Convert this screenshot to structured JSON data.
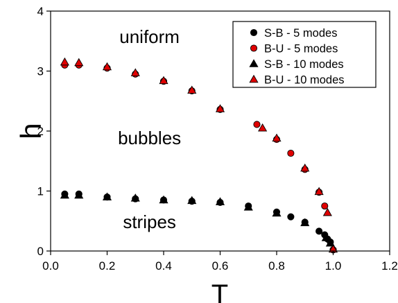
{
  "chart_data": {
    "type": "scatter",
    "xlabel": "T",
    "ylabel": "h",
    "xlim": [
      0.0,
      1.2
    ],
    "ylim": [
      0,
      4
    ],
    "xticks": [
      "0.0",
      "0.2",
      "0.4",
      "0.6",
      "0.8",
      "1.0",
      "1.2"
    ],
    "yticks": [
      "0",
      "1",
      "2",
      "3",
      "4"
    ],
    "grid": false,
    "legend_position": "top-right",
    "annotations": [
      {
        "text": "uniform",
        "x": 0.35,
        "y": 3.47
      },
      {
        "text": "bubbles",
        "x": 0.35,
        "y": 1.78
      },
      {
        "text": "stripes",
        "x": 0.35,
        "y": 0.38
      }
    ],
    "series": [
      {
        "name": "S-B - 5 modes",
        "marker": "circle",
        "color": "#000000",
        "points": [
          [
            0.05,
            0.95
          ],
          [
            0.1,
            0.95
          ],
          [
            0.2,
            0.9
          ],
          [
            0.3,
            0.87
          ],
          [
            0.4,
            0.85
          ],
          [
            0.5,
            0.83
          ],
          [
            0.6,
            0.81
          ],
          [
            0.7,
            0.75
          ],
          [
            0.8,
            0.65
          ],
          [
            0.85,
            0.57
          ],
          [
            0.9,
            0.48
          ],
          [
            0.95,
            0.33
          ],
          [
            0.97,
            0.27
          ],
          [
            0.98,
            0.2
          ],
          [
            0.99,
            0.15
          ],
          [
            1.0,
            0.02
          ]
        ]
      },
      {
        "name": "B-U - 5 modes",
        "marker": "circle",
        "color": "#e00000",
        "points": [
          [
            0.05,
            3.1
          ],
          [
            0.1,
            3.1
          ],
          [
            0.2,
            3.05
          ],
          [
            0.3,
            2.95
          ],
          [
            0.4,
            2.83
          ],
          [
            0.5,
            2.67
          ],
          [
            0.6,
            2.36
          ],
          [
            0.73,
            2.11
          ],
          [
            0.8,
            1.86
          ],
          [
            0.85,
            1.63
          ],
          [
            0.9,
            1.36
          ],
          [
            0.95,
            0.98
          ],
          [
            0.97,
            0.75
          ],
          [
            1.0,
            0.02
          ]
        ]
      },
      {
        "name": "S-B - 10 modes",
        "marker": "triangle",
        "color": "#000000",
        "points": [
          [
            0.05,
            0.93
          ],
          [
            0.1,
            0.93
          ],
          [
            0.2,
            0.9
          ],
          [
            0.3,
            0.88
          ],
          [
            0.4,
            0.85
          ],
          [
            0.5,
            0.84
          ],
          [
            0.6,
            0.82
          ],
          [
            0.7,
            0.73
          ],
          [
            0.8,
            0.63
          ],
          [
            0.9,
            0.47
          ],
          [
            0.975,
            0.22
          ],
          [
            0.99,
            0.13
          ]
        ]
      },
      {
        "name": "B-U - 10 modes",
        "marker": "triangle",
        "color": "#e00000",
        "points": [
          [
            0.05,
            3.15
          ],
          [
            0.1,
            3.14
          ],
          [
            0.2,
            3.07
          ],
          [
            0.3,
            2.97
          ],
          [
            0.4,
            2.84
          ],
          [
            0.5,
            2.68
          ],
          [
            0.6,
            2.37
          ],
          [
            0.75,
            2.05
          ],
          [
            0.8,
            1.88
          ],
          [
            0.9,
            1.38
          ],
          [
            0.95,
            0.99
          ],
          [
            0.98,
            0.64
          ],
          [
            1.0,
            0.03
          ]
        ]
      }
    ]
  }
}
